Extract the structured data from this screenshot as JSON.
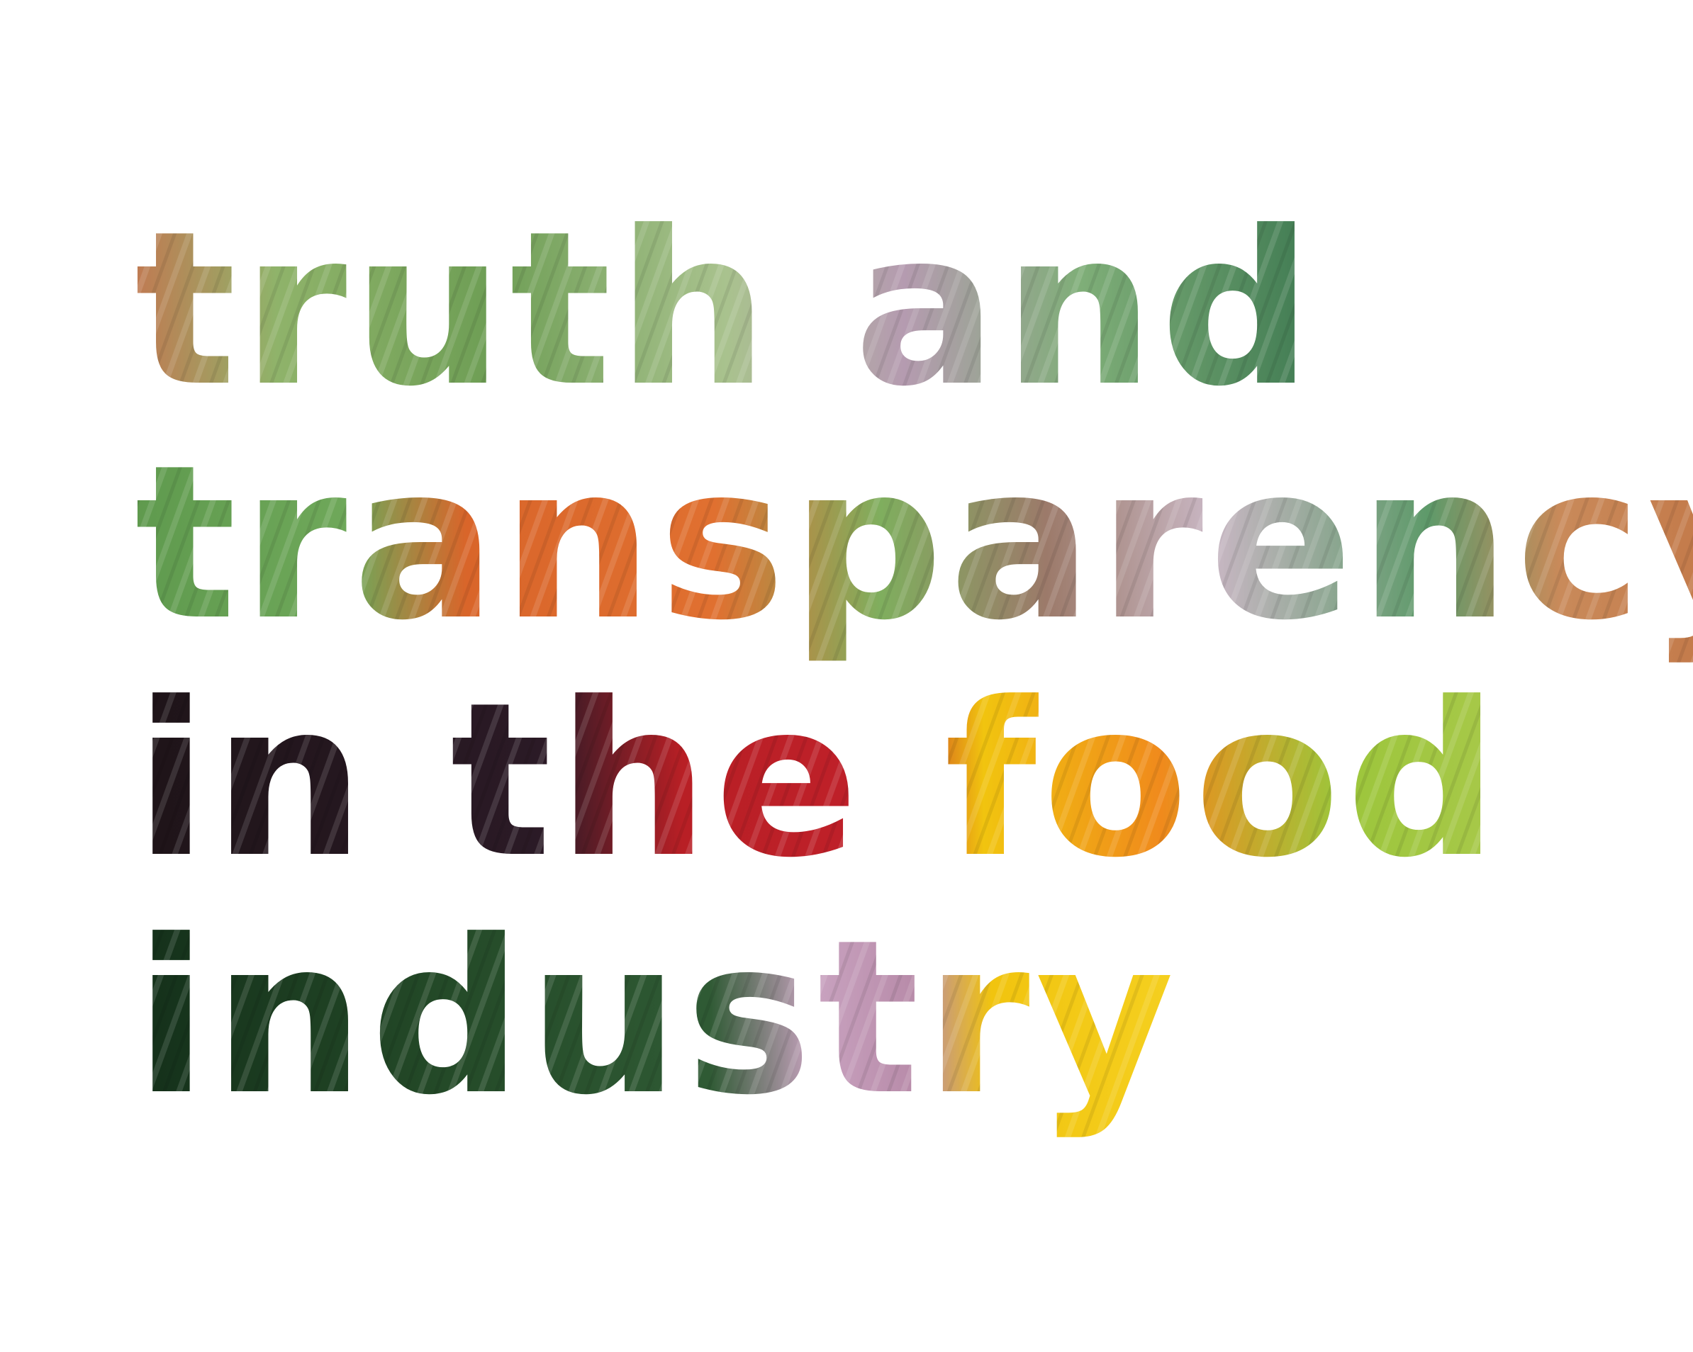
{
  "headline": {
    "lines": [
      "truth and",
      "transparency",
      "in the food",
      "industry"
    ]
  },
  "palette": {
    "asparagus_green": "#7fae5e",
    "leaf_green": "#4f8a4a",
    "carrot_orange": "#d9652a",
    "skin_tan": "#c98a5a",
    "onion_lilac": "#b79bb0",
    "beet_purple": "#3a1d2a",
    "tomato_red": "#b81f25",
    "pepper_yellow": "#f1c40f",
    "pepper_orange": "#f08a1c",
    "lime_green": "#9cc63b",
    "zucchini_dark": "#1f3a22",
    "background": "#ffffff"
  }
}
